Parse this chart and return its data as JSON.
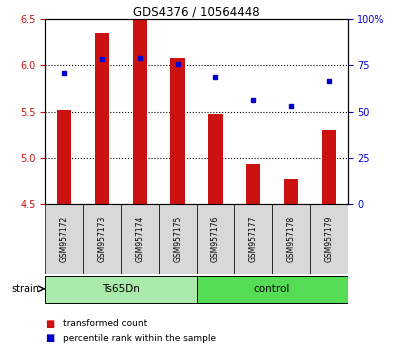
{
  "title": "GDS4376 / 10564448",
  "samples": [
    "GSM957172",
    "GSM957173",
    "GSM957174",
    "GSM957175",
    "GSM957176",
    "GSM957177",
    "GSM957178",
    "GSM957179"
  ],
  "bar_values": [
    5.52,
    6.35,
    6.5,
    6.08,
    5.47,
    4.93,
    4.77,
    5.3
  ],
  "bar_baseline": 4.5,
  "bar_color": "#cc1111",
  "dot_values": [
    5.92,
    6.07,
    6.08,
    6.02,
    5.88,
    5.62,
    5.56,
    5.83
  ],
  "dot_color": "#0000cc",
  "ylim_left": [
    4.5,
    6.5
  ],
  "ylim_right": [
    0,
    100
  ],
  "yticks_left": [
    4.5,
    5.0,
    5.5,
    6.0,
    6.5
  ],
  "yticks_right": [
    0,
    25,
    50,
    75,
    100
  ],
  "ytick_labels_right": [
    "0",
    "25",
    "50",
    "75",
    "100%"
  ],
  "grid_values": [
    5.0,
    5.5,
    6.0
  ],
  "groups": [
    {
      "label": "Ts65Dn",
      "indices": [
        0,
        1,
        2,
        3
      ],
      "color": "#aaeaaa"
    },
    {
      "label": "control",
      "indices": [
        4,
        5,
        6,
        7
      ],
      "color": "#55dd55"
    }
  ],
  "strain_label": "strain",
  "legend_bar_label": "transformed count",
  "legend_dot_label": "percentile rank within the sample",
  "sample_bg_color": "#d8d8d8",
  "plot_bg": "#ffffff"
}
